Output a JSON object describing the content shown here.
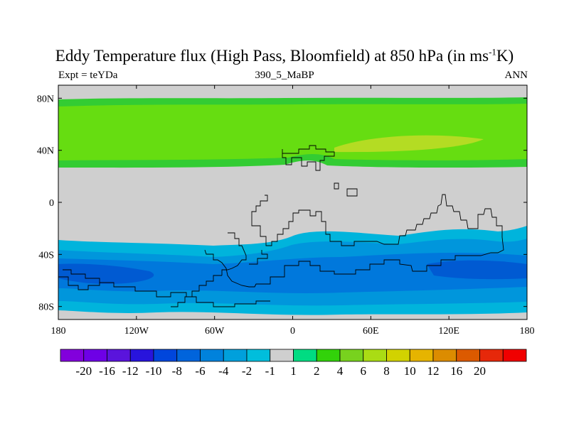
{
  "title": {
    "prefix": "Eddy Temperature flux (High Pass, Bloomfield) at 850 hPa (in ms",
    "superscript": "-1",
    "suffix": "K)"
  },
  "subtitle": {
    "left": "Expt = teYDa",
    "center": "390_5_MaBP",
    "right": "ANN"
  },
  "map": {
    "projection": "cylindrical-equidistant",
    "lon_range": [
      -180,
      180
    ],
    "lat_range": [
      -90,
      90
    ],
    "x_ticks": [
      {
        "value": -180,
        "label": "180"
      },
      {
        "value": -120,
        "label": "120W"
      },
      {
        "value": -60,
        "label": "60W"
      },
      {
        "value": 0,
        "label": "0"
      },
      {
        "value": 60,
        "label": "60E"
      },
      {
        "value": 120,
        "label": "120E"
      },
      {
        "value": 180,
        "label": "180"
      }
    ],
    "y_ticks": [
      {
        "value": 80,
        "label": "80N"
      },
      {
        "value": 40,
        "label": "40N"
      },
      {
        "value": 0,
        "label": "0"
      },
      {
        "value": -40,
        "label": "40S"
      },
      {
        "value": -80,
        "label": "80S"
      }
    ],
    "colors": {
      "neutral": "#cfcfcf",
      "pos_2_4": "#33cc33",
      "pos_4_6": "#66dd11",
      "pos_6_8": "#b4dc23",
      "pos_1_2": "#00d2a0",
      "neg_1_2": "#00b4dc",
      "neg_2_4": "#0096dc",
      "neg_4_6": "#0078dc",
      "neg_6_8": "#005ad2",
      "coast": "#000000"
    }
  },
  "colorbar": {
    "colors": [
      "#8200dc",
      "#6e00e6",
      "#5a14dc",
      "#2814dc",
      "#0046dc",
      "#0064dc",
      "#0082dc",
      "#00a0dc",
      "#00bedc",
      "#cfcfcf",
      "#00dc82",
      "#32d20a",
      "#78d21e",
      "#aadc14",
      "#d2d200",
      "#e6b400",
      "#dc8c00",
      "#dc5a00",
      "#e6280a",
      "#f00000"
    ],
    "labels": [
      "-20",
      "-16",
      "-12",
      "-10",
      "-8",
      "-6",
      "-4",
      "-2",
      "-1",
      "1",
      "2",
      "4",
      "6",
      "8",
      "10",
      "12",
      "16",
      "20"
    ]
  }
}
